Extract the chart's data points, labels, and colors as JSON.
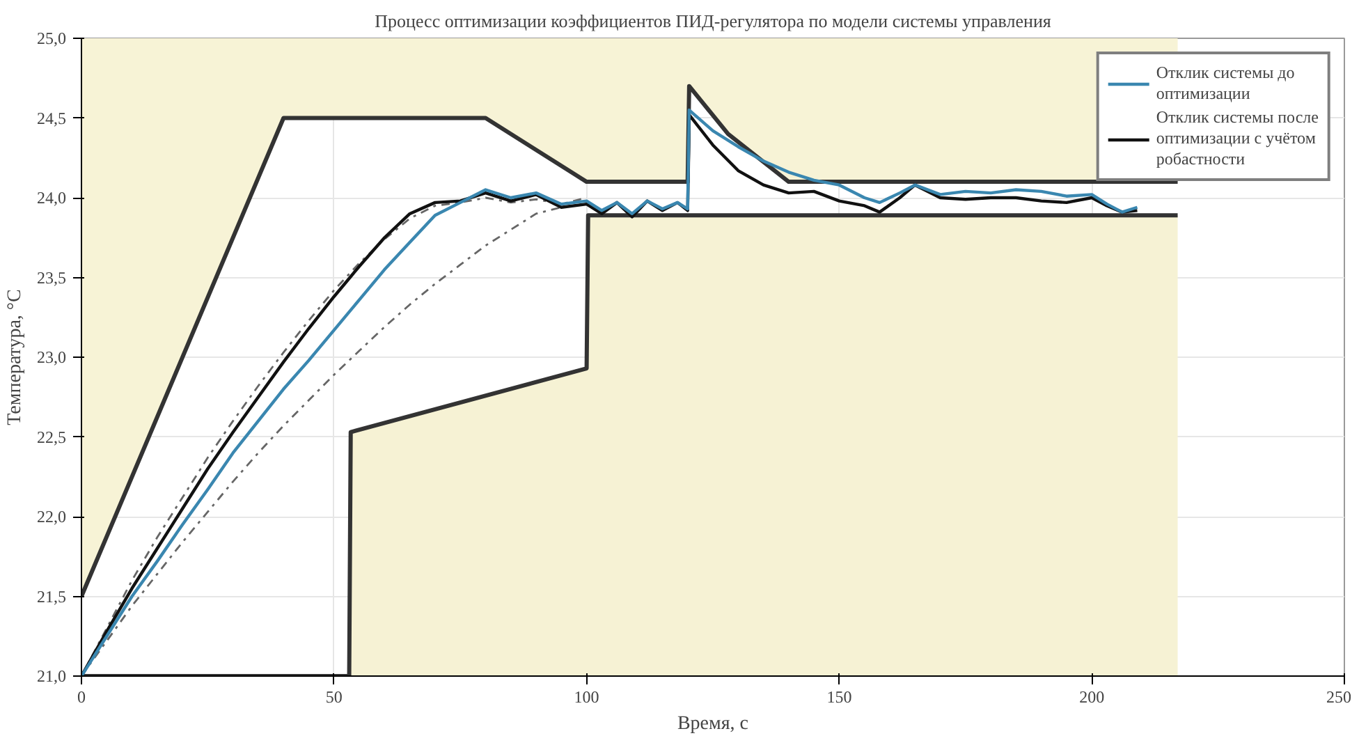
{
  "chart_data": {
    "type": "line",
    "title": "Процесс оптимизации коэффициентов ПИД-регулятора по модели системы управления",
    "xlabel": "Время, с",
    "ylabel": "Температура, °C",
    "xlim": [
      0,
      250
    ],
    "xticks": [
      0,
      50,
      100,
      150,
      200,
      250
    ],
    "ylim": [
      21,
      25
    ],
    "yticks": [
      {
        "value": 21,
        "label": "21,0"
      },
      {
        "value": 21.5,
        "label": "21,5"
      },
      {
        "value": 22,
        "label": "22,0"
      },
      {
        "value": 22.5,
        "label": "22,5"
      },
      {
        "value": 23,
        "label": "23,0"
      },
      {
        "value": 23.5,
        "label": "23,5"
      },
      {
        "value": 24,
        "label": "24,0"
      },
      {
        "value": 24.5,
        "label": "24,5"
      },
      {
        "value": 25,
        "label": "25,0"
      }
    ],
    "grid": true,
    "legend": "top right",
    "line_style": "solid",
    "marker": "none",
    "series": [
      {
        "color": "#333333",
        "x": [
          0,
          40,
          80,
          100,
          120,
          120.3,
          128,
          140,
          217
        ],
        "values": [
          21.5,
          24.5,
          24.5,
          24.1,
          24.1,
          24.7,
          24.4,
          24.1,
          24.1
        ],
        "lower": [
          21.5,
          24.5,
          24.5,
          24.1,
          24.1,
          24.7,
          24.4,
          24.1,
          24.1
        ],
        "upper": [
          25,
          25,
          25,
          25,
          25,
          25,
          25,
          25,
          25
        ]
      },
      {
        "color": "#333333",
        "x": [
          0,
          53
        ],
        "values": [
          21,
          21
        ]
      },
      {
        "color": "#333333",
        "x": [
          53,
          53.3,
          100,
          100.3,
          217
        ],
        "values": [
          21,
          22.53,
          22.93,
          23.89,
          23.89
        ],
        "lower": [
          21,
          21,
          21,
          21,
          21
        ],
        "upper": [
          21,
          22.53,
          22.93,
          23.89,
          23.89
        ]
      },
      {
        "color": "#666666",
        "line_style": "dashed",
        "x": [
          0,
          5,
          10,
          15,
          20,
          25,
          30,
          35,
          40,
          45,
          50,
          55,
          60,
          65,
          70,
          75,
          80,
          85,
          90,
          95,
          100
        ],
        "values": [
          21.0,
          21.3,
          21.6,
          21.87,
          22.12,
          22.37,
          22.6,
          22.82,
          23.03,
          23.23,
          23.42,
          23.59,
          23.74,
          23.87,
          23.95,
          23.97,
          24.0,
          23.97,
          23.99,
          23.96,
          24.0
        ]
      },
      {
        "color": "#666666",
        "line_style": "dashed",
        "x": [
          0,
          5,
          10,
          15,
          20,
          25,
          30,
          35,
          40,
          45,
          50,
          55,
          60,
          65,
          70,
          75,
          80,
          85,
          90,
          95
        ],
        "values": [
          21.0,
          21.22,
          21.44,
          21.64,
          21.84,
          22.03,
          22.22,
          22.4,
          22.57,
          22.73,
          22.89,
          23.04,
          23.19,
          23.33,
          23.46,
          23.58,
          23.7,
          23.8,
          23.9,
          23.94
        ]
      },
      {
        "name": "Отклик системы после оптимизации с учётом робастности",
        "color": "#111111",
        "x": [
          0,
          5,
          10,
          15,
          20,
          25,
          30,
          35,
          40,
          45,
          50,
          55,
          60,
          65,
          70,
          75,
          80,
          85,
          90,
          95,
          100,
          103,
          106,
          109,
          112,
          115,
          118,
          120,
          120.3,
          125,
          130,
          135,
          140,
          145,
          150,
          155,
          158,
          162,
          165,
          170,
          175,
          180,
          185,
          190,
          195,
          200,
          203,
          206,
          209
        ],
        "values": [
          21.0,
          21.28,
          21.55,
          21.8,
          22.05,
          22.3,
          22.53,
          22.75,
          22.97,
          23.18,
          23.38,
          23.57,
          23.75,
          23.9,
          23.97,
          23.98,
          24.03,
          23.98,
          24.02,
          23.94,
          23.96,
          23.9,
          23.97,
          23.88,
          23.98,
          23.92,
          23.97,
          23.92,
          24.52,
          24.33,
          24.17,
          24.08,
          24.03,
          24.04,
          23.98,
          23.95,
          23.91,
          24.0,
          24.08,
          24.0,
          23.99,
          24.0,
          24.0,
          23.98,
          23.97,
          24.0,
          23.95,
          23.91,
          23.92
        ]
      },
      {
        "name": "Отклик системы до оптимизации",
        "color": "#3a87b0",
        "x": [
          0,
          5,
          10,
          15,
          20,
          25,
          30,
          35,
          40,
          45,
          50,
          55,
          60,
          65,
          70,
          75,
          80,
          85,
          90,
          95,
          100,
          103,
          106,
          109,
          112,
          115,
          118,
          120,
          120.3,
          125,
          130,
          135,
          140,
          145,
          150,
          155,
          158,
          162,
          165,
          170,
          175,
          180,
          185,
          190,
          195,
          200,
          203,
          206,
          209
        ],
        "values": [
          21.0,
          21.25,
          21.5,
          21.72,
          21.95,
          22.17,
          22.4,
          22.6,
          22.8,
          22.98,
          23.17,
          23.36,
          23.55,
          23.72,
          23.89,
          23.97,
          24.05,
          24.0,
          24.03,
          23.96,
          23.98,
          23.92,
          23.97,
          23.9,
          23.98,
          23.93,
          23.97,
          23.93,
          24.55,
          24.42,
          24.32,
          24.23,
          24.16,
          24.11,
          24.08,
          24.0,
          23.97,
          24.03,
          24.08,
          24.02,
          24.04,
          24.03,
          24.05,
          24.04,
          24.01,
          24.02,
          23.96,
          23.91,
          23.94
        ]
      }
    ]
  }
}
